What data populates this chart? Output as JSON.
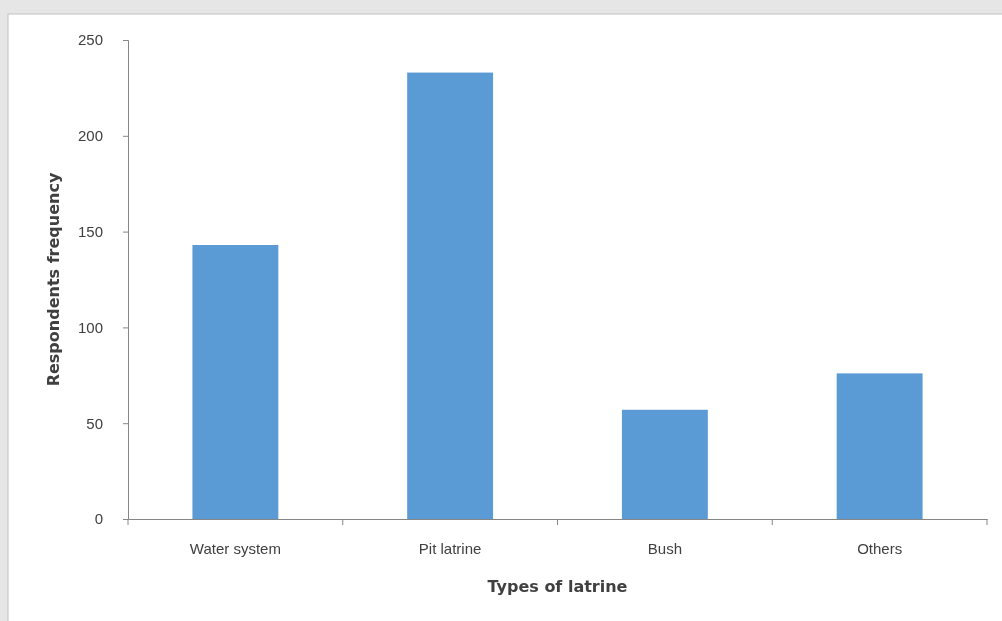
{
  "chart_data": {
    "type": "bar",
    "xlabel": "Types of latrine",
    "ylabel": "Respondents frequency",
    "categories": [
      "Water system",
      "Pit latrine",
      "Bush",
      "Others"
    ],
    "values": [
      143,
      233,
      57,
      76
    ],
    "color": "#5b9bd5",
    "ylim": [
      0,
      250
    ],
    "yticks": [
      0,
      50,
      100,
      150,
      200,
      250
    ],
    "grid": false
  }
}
